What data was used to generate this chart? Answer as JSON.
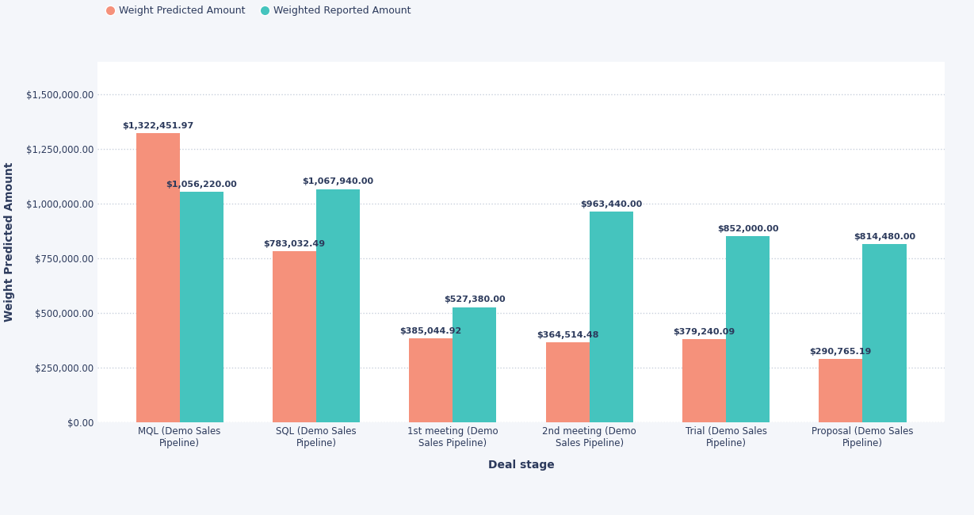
{
  "categories": [
    "MQL (Demo Sales\nPipeline)",
    "SQL (Demo Sales\nPipeline)",
    "1st meeting (Demo\nSales Pipeline)",
    "2nd meeting (Demo\nSales Pipeline)",
    "Trial (Demo Sales\nPipeline)",
    "Proposal (Demo Sales\nPipeline)"
  ],
  "predicted_values": [
    1322451.97,
    783032.49,
    385044.92,
    364514.48,
    379240.09,
    290765.19
  ],
  "reported_values": [
    1056220.0,
    1067940.0,
    527380.0,
    963440.0,
    852000.0,
    814480.0
  ],
  "predicted_color": "#F5917B",
  "reported_color": "#45C4BE",
  "bg_color": "#F4F6FA",
  "chart_bg_color": "#FFFFFF",
  "grid_color": "#C8D0DC",
  "text_color": "#2C3A5C",
  "ylabel": "Weight Predicted Amount",
  "xlabel": "Deal stage",
  "legend_predicted": "Weight Predicted Amount",
  "legend_reported": "Weighted Reported Amount",
  "ylim": [
    0,
    1650000
  ],
  "yticks": [
    0,
    250000,
    500000,
    750000,
    1000000,
    1250000,
    1500000
  ],
  "bar_width": 0.32,
  "label_fontsize": 8.0,
  "axis_label_fontsize": 10,
  "tick_fontsize": 8.5,
  "legend_fontsize": 9
}
